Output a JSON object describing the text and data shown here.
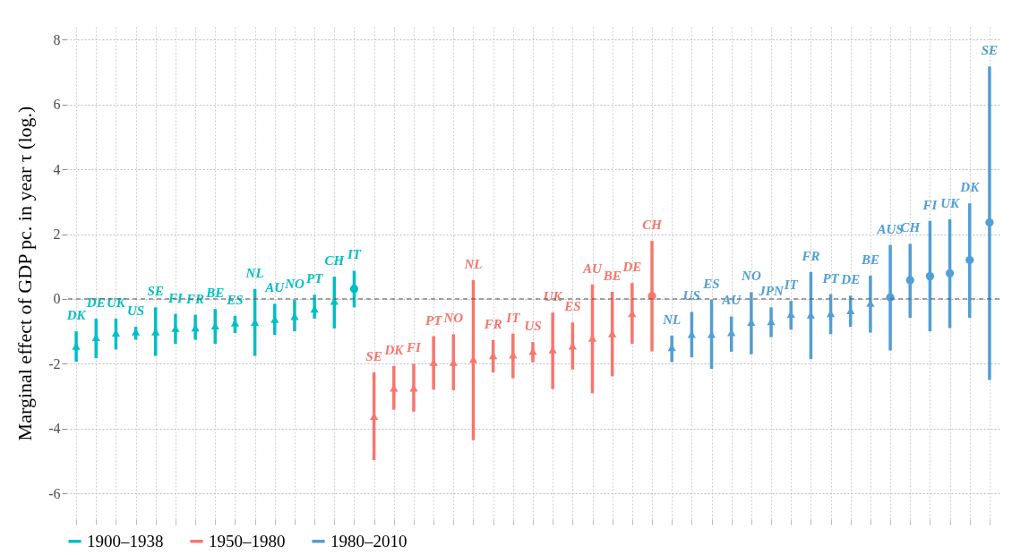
{
  "chart_data": {
    "type": "scatter",
    "ylabel": "Marginal effect of GDP pc. in year τ (log.)",
    "categories": [
      "DK",
      "DE",
      "UK",
      "US",
      "SE",
      "FI",
      "FR",
      "BE",
      "ES",
      "NL",
      "AU",
      "NO",
      "PT",
      "CH",
      "IT",
      "SE",
      "DK",
      "FI",
      "PT",
      "NO",
      "NL",
      "FR",
      "IT",
      "US",
      "UK",
      "ES",
      "AU",
      "BE",
      "DE",
      "CH",
      "NL",
      "US",
      "ES",
      "AU",
      "NO",
      "JPN",
      "IT",
      "FR",
      "PT",
      "DE",
      "BE",
      "AUS",
      "CH",
      "FI",
      "UK",
      "DK",
      "SE"
    ],
    "ylim": [
      -6.8,
      8.4
    ],
    "yticks": [
      -6,
      -4,
      -2,
      0,
      2,
      4,
      6,
      8
    ],
    "grid": true,
    "legend": "bottom",
    "ref_lines": [
      {
        "axis": "y",
        "value": 0,
        "line_style": "dashed"
      }
    ],
    "series": [
      {
        "name": "1900–1938",
        "color": "#00bfc4",
        "marker": "triangle",
        "values": [
          -1.46,
          -1.19,
          -1.05,
          -1.02,
          -1.02,
          -0.91,
          -0.89,
          -0.83,
          -0.74,
          -0.72,
          -0.63,
          -0.54,
          -0.31,
          -0.07,
          null,
          null,
          null,
          null,
          null,
          null,
          null,
          null,
          null,
          null,
          null,
          null,
          null,
          null,
          null,
          null,
          null,
          null,
          null,
          null,
          null,
          null,
          null,
          null,
          null,
          null,
          null,
          null,
          null,
          null,
          null,
          null,
          null
        ],
        "errors": [
          [
            -1.94,
            -1.0
          ],
          [
            -1.83,
            -0.61
          ],
          [
            -1.56,
            -0.61
          ],
          [
            -1.26,
            -0.86
          ],
          [
            -1.76,
            -0.26
          ],
          [
            -1.39,
            -0.46
          ],
          [
            -1.26,
            -0.49
          ],
          [
            -1.39,
            -0.31
          ],
          [
            -1.05,
            -0.52
          ],
          [
            -1.76,
            0.31
          ],
          [
            -1.11,
            -0.15
          ],
          [
            -1.0,
            -0.03
          ],
          [
            -0.61,
            0.13
          ],
          [
            -0.91,
            0.69
          ],
          null,
          null,
          null,
          null,
          null,
          null,
          null,
          null,
          null,
          null,
          null,
          null,
          null,
          null,
          null,
          null,
          null,
          null,
          null,
          null,
          null,
          null,
          null,
          null,
          null,
          null,
          null,
          null,
          null,
          null,
          null,
          null,
          null
        ]
      },
      {
        "color": "#00bfc4",
        "marker": "circle",
        "values": [
          null,
          null,
          null,
          null,
          null,
          null,
          null,
          null,
          null,
          null,
          null,
          null,
          null,
          null,
          0.31,
          null,
          null,
          null,
          null,
          null,
          null,
          null,
          null,
          null,
          null,
          null,
          null,
          null,
          null,
          null,
          null,
          null,
          null,
          null,
          null,
          null,
          null,
          null,
          null,
          null,
          null,
          null,
          null,
          null,
          null,
          null,
          null
        ],
        "errors": [
          null,
          null,
          null,
          null,
          null,
          null,
          null,
          null,
          null,
          null,
          null,
          null,
          null,
          null,
          [
            -0.26,
            0.87
          ],
          null,
          null,
          null,
          null,
          null,
          null,
          null,
          null,
          null,
          null,
          null,
          null,
          null,
          null,
          null,
          null,
          null,
          null,
          null,
          null,
          null,
          null,
          null,
          null,
          null,
          null,
          null,
          null,
          null,
          null,
          null,
          null
        ]
      },
      {
        "name": "1950–1980",
        "color": "#f8766d",
        "marker": "triangle",
        "values": [
          null,
          null,
          null,
          null,
          null,
          null,
          null,
          null,
          null,
          null,
          null,
          null,
          null,
          null,
          null,
          -3.62,
          -2.75,
          -2.75,
          -1.96,
          -1.96,
          -1.87,
          -1.75,
          -1.73,
          -1.62,
          -1.57,
          -1.45,
          -1.21,
          -1.07,
          -0.45,
          null,
          null,
          null,
          null,
          null,
          null,
          null,
          null,
          null,
          null,
          null,
          null,
          null,
          null,
          null,
          null,
          null,
          null
        ],
        "errors": [
          null,
          null,
          null,
          null,
          null,
          null,
          null,
          null,
          null,
          null,
          null,
          null,
          null,
          null,
          null,
          [
            -4.98,
            -2.27
          ],
          [
            -3.42,
            -2.07
          ],
          [
            -3.48,
            -2.0
          ],
          [
            -2.8,
            -1.15
          ],
          [
            -2.82,
            -1.09
          ],
          [
            -4.36,
            0.58
          ],
          [
            -2.27,
            -1.27
          ],
          [
            -2.45,
            -1.07
          ],
          [
            -1.96,
            -1.33
          ],
          [
            -2.78,
            -0.42
          ],
          [
            -2.18,
            -0.73
          ],
          [
            -2.91,
            0.45
          ],
          [
            -2.39,
            0.22
          ],
          [
            -1.39,
            0.49
          ],
          null,
          null,
          null,
          null,
          null,
          null,
          null,
          null,
          null,
          null,
          null,
          null,
          null,
          null,
          null,
          null,
          null,
          null
        ]
      },
      {
        "color": "#f8766d",
        "marker": "circle",
        "values": [
          null,
          null,
          null,
          null,
          null,
          null,
          null,
          null,
          null,
          null,
          null,
          null,
          null,
          null,
          null,
          null,
          null,
          null,
          null,
          null,
          null,
          null,
          null,
          null,
          null,
          null,
          null,
          null,
          null,
          0.09,
          null,
          null,
          null,
          null,
          null,
          null,
          null,
          null,
          null,
          null,
          null,
          null,
          null,
          null,
          null,
          null,
          null
        ],
        "errors": [
          null,
          null,
          null,
          null,
          null,
          null,
          null,
          null,
          null,
          null,
          null,
          null,
          null,
          null,
          null,
          null,
          null,
          null,
          null,
          null,
          null,
          null,
          null,
          null,
          null,
          null,
          null,
          null,
          null,
          [
            -1.62,
            1.79
          ],
          null,
          null,
          null,
          null,
          null,
          null,
          null,
          null,
          null,
          null,
          null,
          null,
          null,
          null,
          null,
          null,
          null
        ]
      },
      {
        "name": "1980–2010",
        "color": "#529ed6",
        "marker": "triangle",
        "values": [
          null,
          null,
          null,
          null,
          null,
          null,
          null,
          null,
          null,
          null,
          null,
          null,
          null,
          null,
          null,
          null,
          null,
          null,
          null,
          null,
          null,
          null,
          null,
          null,
          null,
          null,
          null,
          null,
          null,
          null,
          -1.5,
          -1.09,
          -1.09,
          -1.04,
          -0.72,
          -0.7,
          -0.47,
          -0.49,
          -0.45,
          -0.36,
          -0.13,
          null,
          null,
          null,
          null,
          null,
          null
        ],
        "errors": [
          null,
          null,
          null,
          null,
          null,
          null,
          null,
          null,
          null,
          null,
          null,
          null,
          null,
          null,
          null,
          null,
          null,
          null,
          null,
          null,
          null,
          null,
          null,
          null,
          null,
          null,
          null,
          null,
          null,
          null,
          [
            -1.95,
            -1.13
          ],
          [
            -1.8,
            -0.4
          ],
          [
            -2.16,
            -0.02
          ],
          [
            -1.63,
            -0.54
          ],
          [
            -1.71,
            0.21
          ],
          [
            -1.18,
            -0.26
          ],
          [
            -0.95,
            -0.06
          ],
          [
            -1.86,
            0.83
          ],
          [
            -1.09,
            0.15
          ],
          [
            -0.86,
            0.1
          ],
          [
            -1.04,
            0.72
          ],
          null,
          null,
          null,
          null,
          null,
          null
        ]
      },
      {
        "color": "#529ed6",
        "marker": "circle",
        "values": [
          null,
          null,
          null,
          null,
          null,
          null,
          null,
          null,
          null,
          null,
          null,
          null,
          null,
          null,
          null,
          null,
          null,
          null,
          null,
          null,
          null,
          null,
          null,
          null,
          null,
          null,
          null,
          null,
          null,
          null,
          null,
          null,
          null,
          null,
          null,
          null,
          null,
          null,
          null,
          null,
          null,
          0.05,
          0.58,
          0.7,
          0.79,
          1.2,
          2.36
        ],
        "errors": [
          null,
          null,
          null,
          null,
          null,
          null,
          null,
          null,
          null,
          null,
          null,
          null,
          null,
          null,
          null,
          null,
          null,
          null,
          null,
          null,
          null,
          null,
          null,
          null,
          null,
          null,
          null,
          null,
          null,
          null,
          null,
          null,
          null,
          null,
          null,
          null,
          null,
          null,
          null,
          null,
          null,
          [
            -1.59,
            1.67
          ],
          [
            -0.58,
            1.7
          ],
          [
            -1.0,
            2.41
          ],
          [
            -0.9,
            2.46
          ],
          [
            -0.58,
            2.95
          ],
          [
            -2.5,
            7.18
          ]
        ]
      }
    ]
  }
}
